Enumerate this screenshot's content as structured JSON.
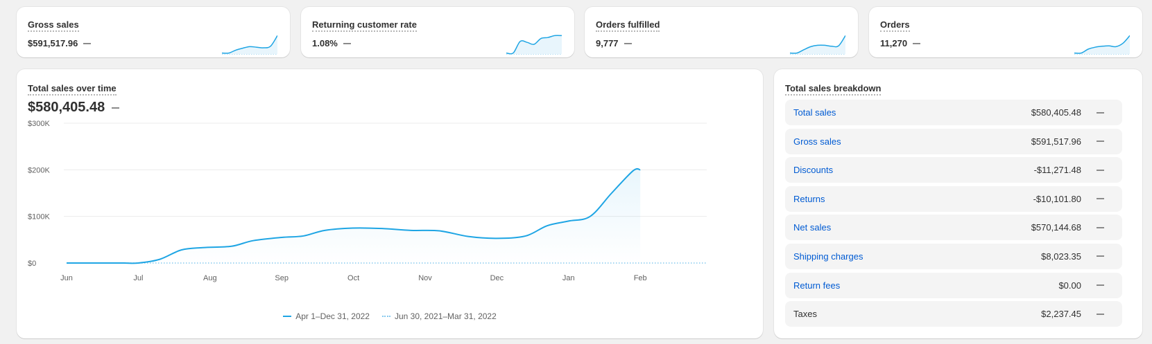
{
  "kpis": [
    {
      "title": "Gross sales",
      "value": "$591,517.96",
      "spark": [
        0.05,
        0.05,
        0.2,
        0.3,
        0.38,
        0.35,
        0.32,
        0.4,
        0.95
      ]
    },
    {
      "title": "Returning customer rate",
      "value": "1.08%",
      "spark": [
        0.05,
        0.05,
        0.65,
        0.6,
        0.5,
        0.8,
        0.85,
        0.95,
        0.95
      ]
    },
    {
      "title": "Orders fulfilled",
      "value": "9,777",
      "spark": [
        0.05,
        0.05,
        0.22,
        0.38,
        0.45,
        0.45,
        0.4,
        0.42,
        0.95
      ]
    },
    {
      "title": "Orders",
      "value": "11,270",
      "spark": [
        0.05,
        0.05,
        0.25,
        0.35,
        0.4,
        0.42,
        0.38,
        0.55,
        0.95
      ]
    }
  ],
  "sales_over_time": {
    "title": "Total sales over time",
    "value": "$580,405.48",
    "legend": [
      "Apr 1–Dec 31, 2022",
      "Jun 30, 2021–Mar 31, 2022"
    ]
  },
  "chart_data": {
    "type": "line",
    "x": [
      "Jun",
      "Jul",
      "Aug",
      "Sep",
      "Oct",
      "Nov",
      "Dec",
      "Jan",
      "Feb"
    ],
    "y_ticks": [
      "$0",
      "$100K",
      "$200K",
      "$300K"
    ],
    "ylim": [
      0,
      300000
    ],
    "series": [
      {
        "name": "Apr 1–Dec 31, 2022",
        "x": [
          0,
          0.5,
          0.8,
          1.0,
          1.3,
          1.6,
          1.9,
          2.3,
          2.6,
          3.0,
          3.3,
          3.6,
          4.0,
          4.4,
          4.8,
          5.2,
          5.6,
          6.0,
          6.4,
          6.7,
          7.0,
          7.3,
          7.6,
          7.9,
          8.0
        ],
        "values": [
          0,
          0,
          0,
          0,
          8000,
          28000,
          33000,
          36000,
          48000,
          55000,
          58000,
          70000,
          75000,
          74000,
          70000,
          69000,
          57000,
          53000,
          58000,
          80000,
          90000,
          100000,
          150000,
          198000,
          200000
        ]
      },
      {
        "name": "Jun 30, 2021–Mar 31, 2022",
        "x": [
          0,
          9
        ],
        "values": [
          0,
          0
        ]
      }
    ],
    "grid": true
  },
  "breakdown": {
    "title": "Total sales breakdown",
    "rows": [
      {
        "label": "Total sales",
        "value": "$580,405.48",
        "link": true
      },
      {
        "label": "Gross sales",
        "value": "$591,517.96",
        "link": true
      },
      {
        "label": "Discounts",
        "value": "-$11,271.48",
        "link": true
      },
      {
        "label": "Returns",
        "value": "-$10,101.80",
        "link": true
      },
      {
        "label": "Net sales",
        "value": "$570,144.68",
        "link": true
      },
      {
        "label": "Shipping charges",
        "value": "$8,023.35",
        "link": true
      },
      {
        "label": "Return fees",
        "value": "$0.00",
        "link": true
      },
      {
        "label": "Taxes",
        "value": "$2,237.45",
        "link": false
      }
    ]
  }
}
